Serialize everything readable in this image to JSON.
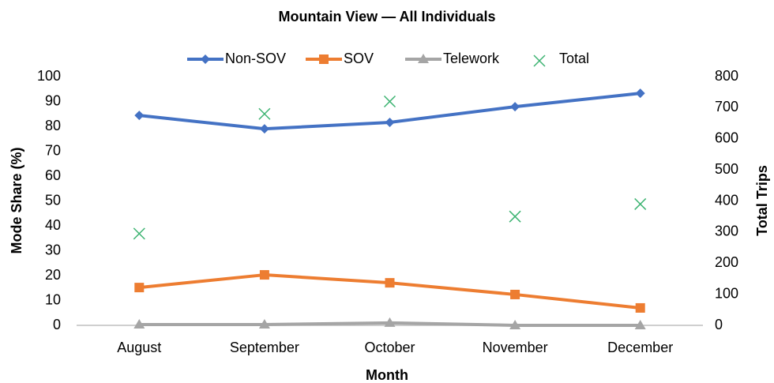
{
  "chart_data": {
    "type": "line",
    "title": "Mountain View — All Individuals",
    "xlabel": "Month",
    "ylabel": "Mode Share (%)",
    "y2label": "Total Trips",
    "categories": [
      "August",
      "September",
      "October",
      "November",
      "December"
    ],
    "series": [
      {
        "name": "Non-SOV",
        "color": "#4472c4",
        "marker": "diamond",
        "values": [
          84.4,
          79.0,
          81.6,
          87.9,
          93.3
        ]
      },
      {
        "name": "SOV",
        "color": "#ed7d31",
        "marker": "square",
        "values": [
          15.2,
          20.3,
          17.1,
          12.4,
          7.0
        ]
      },
      {
        "name": "Telework",
        "color": "#a5a5a5",
        "marker": "triangle",
        "values": [
          0.3,
          0.3,
          1.0,
          0,
          0
        ]
      },
      {
        "name": "Total",
        "color": "#3cb371",
        "marker": "x",
        "type": "scatter",
        "axis": "y2",
        "values": [
          295,
          680,
          720,
          350,
          390
        ]
      }
    ],
    "ylim": [
      0,
      100
    ],
    "yticks": [
      0,
      10,
      20,
      30,
      40,
      50,
      60,
      70,
      80,
      90,
      100
    ],
    "y2lim": [
      0,
      800
    ],
    "y2ticks": [
      0,
      100,
      200,
      300,
      400,
      500,
      600,
      700,
      800
    ],
    "grid": false,
    "legend": "top"
  }
}
